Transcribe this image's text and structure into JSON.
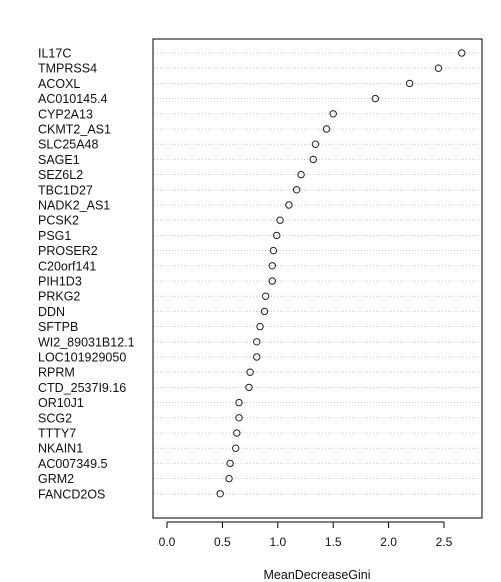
{
  "chart_data": {
    "type": "scatter",
    "subtype": "dotchart",
    "title": "",
    "xlabel": "MeanDecreaseGini",
    "ylabel": "",
    "xlim": [
      -0.05,
      2.75
    ],
    "x_ticks": [
      "0.0",
      "0.5",
      "1.0",
      "1.5",
      "2.0",
      "2.5"
    ],
    "grid": "dotted horizontal guide per row",
    "legend": "none",
    "colors": {
      "point_stroke": "#222222",
      "axis": "#000000",
      "guide": "#bbbbbb",
      "text": "#111111"
    },
    "categories": [
      "IL17C",
      "TMPRSS4",
      "ACOXL",
      "AC010145.4",
      "CYP2A13",
      "CKMT2_AS1",
      "SLC25A48",
      "SAGE1",
      "SEZ6L2",
      "TBC1D27",
      "NADK2_AS1",
      "PCSK2",
      "PSG1",
      "PROSER2",
      "C20orf141",
      "PIH1D3",
      "PRKG2",
      "DDN",
      "SFTPB",
      "WI2_89031B12.1",
      "LOC101929050",
      "RPRM",
      "CTD_2537I9.16",
      "OR10J1",
      "SCG2",
      "TTTY7",
      "NKAIN1",
      "AC007349.5",
      "GRM2",
      "FANCD2OS"
    ],
    "values": [
      2.66,
      2.45,
      2.19,
      1.88,
      1.5,
      1.44,
      1.34,
      1.32,
      1.21,
      1.17,
      1.1,
      1.02,
      0.99,
      0.96,
      0.95,
      0.95,
      0.89,
      0.88,
      0.84,
      0.81,
      0.81,
      0.75,
      0.74,
      0.65,
      0.65,
      0.63,
      0.62,
      0.57,
      0.56,
      0.48
    ]
  }
}
